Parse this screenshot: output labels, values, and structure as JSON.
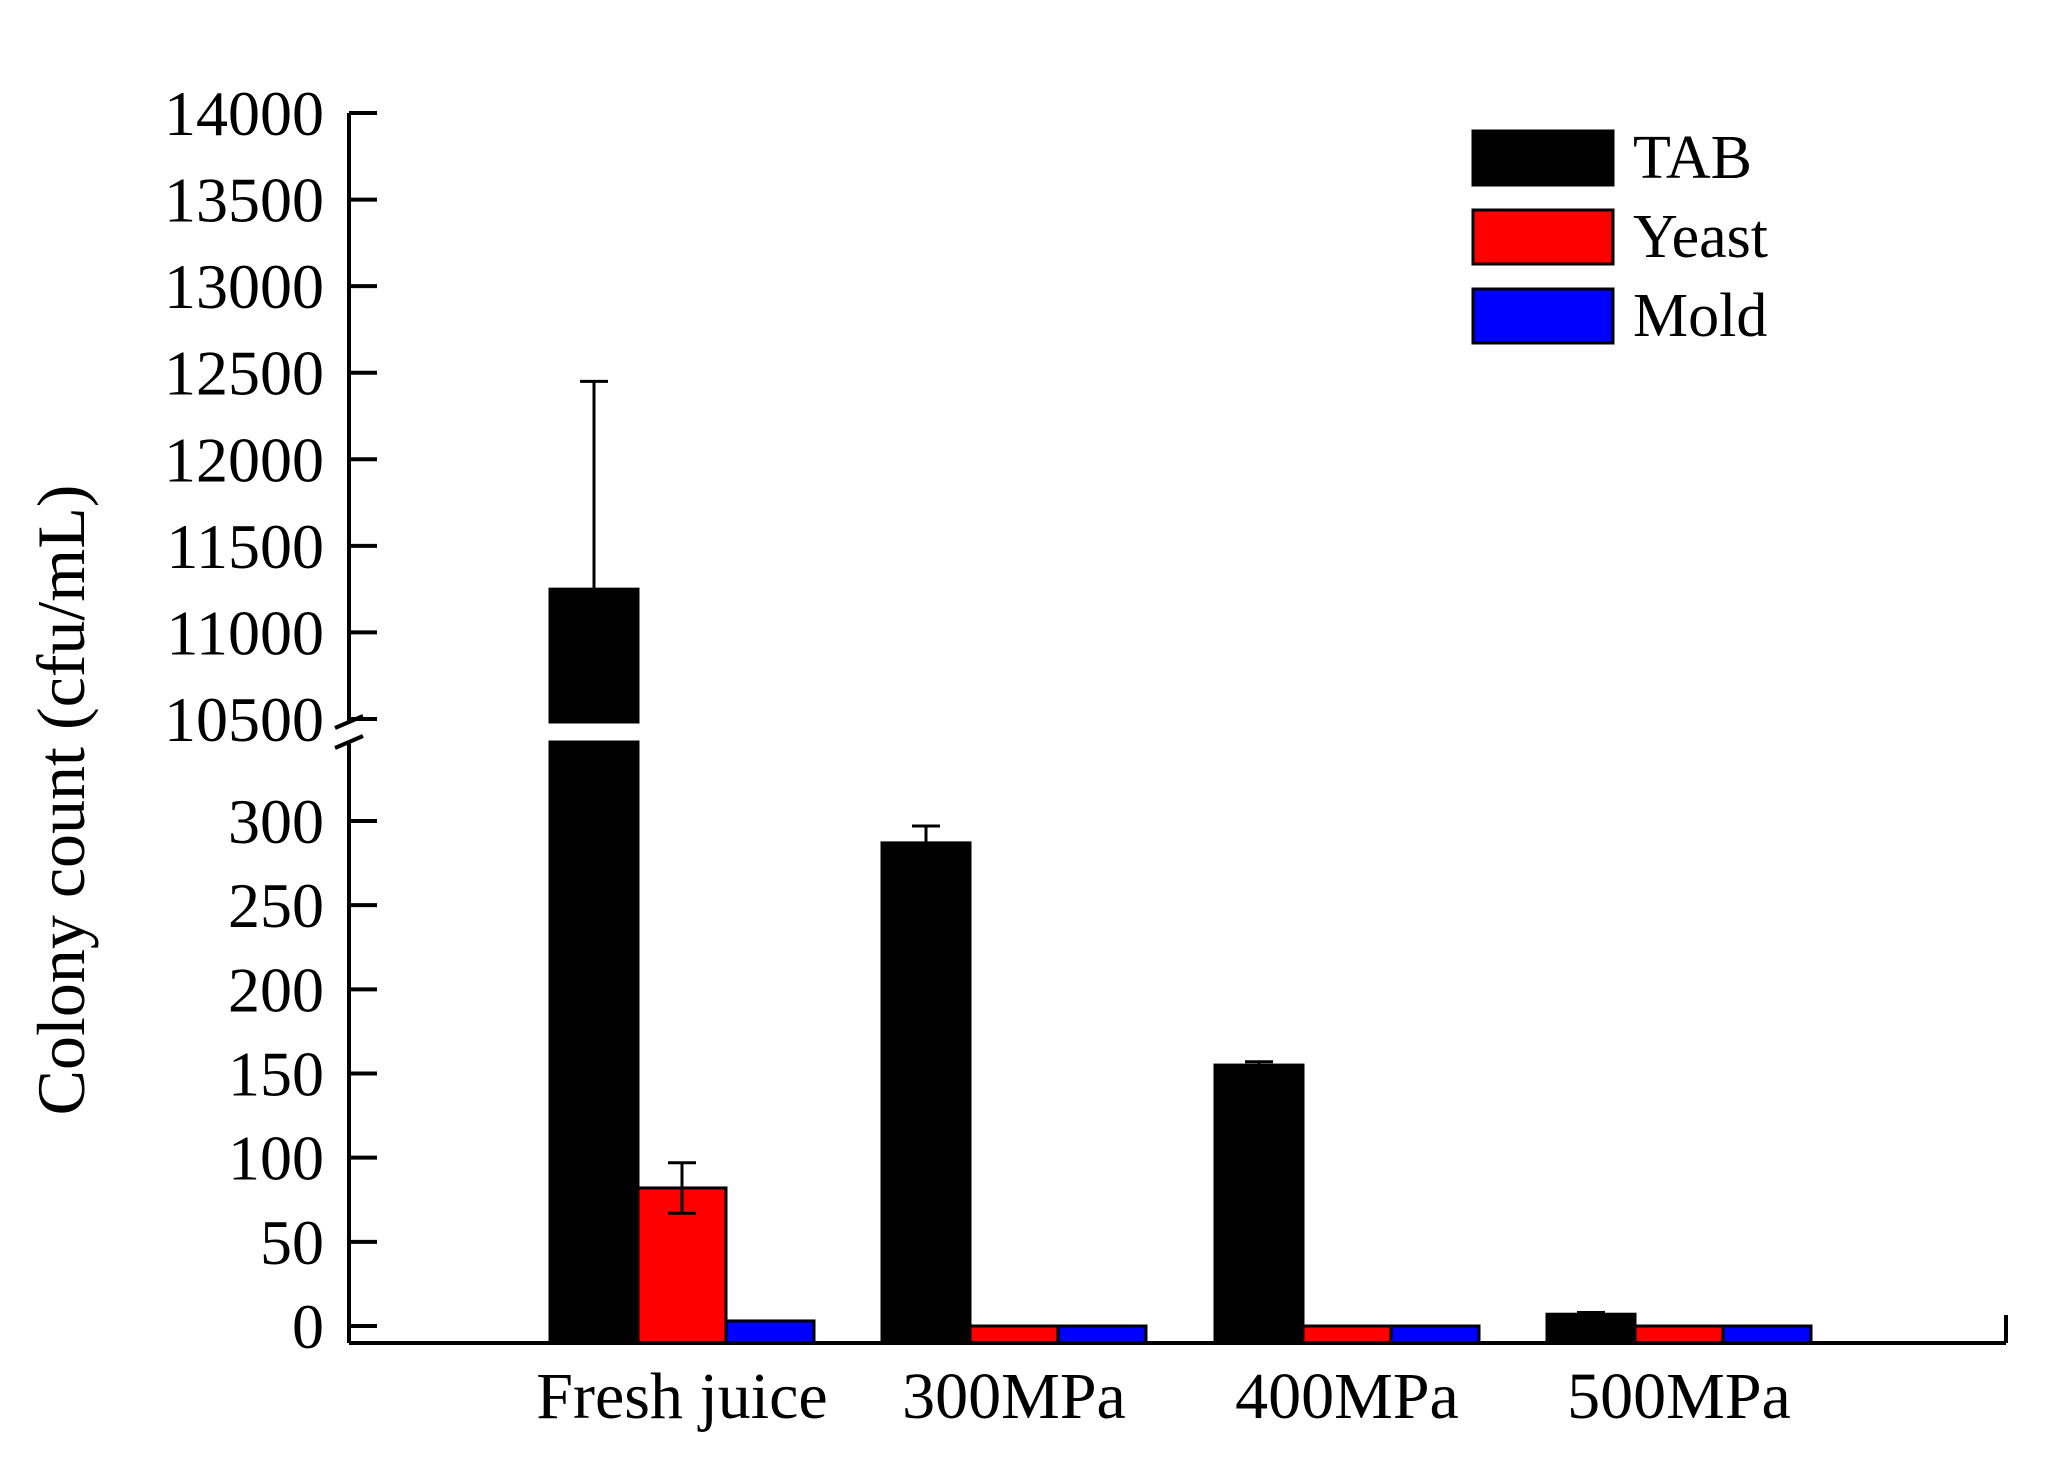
{
  "chart_data": {
    "type": "bar",
    "title": "",
    "xlabel": "",
    "ylabel": "Colony count (cfu/mL)",
    "categories": [
      "Fresh juice",
      "300MPa",
      "400MPa",
      "500MPa"
    ],
    "series": [
      {
        "name": "TAB",
        "color": "#000000",
        "values": [
          11250,
          287,
          155,
          7
        ],
        "errors": [
          1200,
          10,
          2,
          1
        ]
      },
      {
        "name": "Yeast",
        "color": "#ff0000",
        "values": [
          82,
          0,
          0,
          0
        ],
        "errors": [
          15,
          0,
          0,
          0
        ]
      },
      {
        "name": "Mold",
        "color": "#0000ff",
        "values": [
          3,
          0,
          0,
          0
        ],
        "errors": [
          0,
          0,
          0,
          0
        ]
      }
    ],
    "axis_break": {
      "lower_range": [
        -10,
        330
      ],
      "upper_range": [
        10500,
        14000
      ]
    },
    "lower_ticks": [
      "0",
      "50",
      "100",
      "150",
      "200",
      "250",
      "300"
    ],
    "upper_ticks": [
      "10500",
      "11000",
      "11500",
      "12000",
      "12500",
      "13000",
      "13500",
      "14000"
    ],
    "legend_position": "top-right",
    "grid": false
  }
}
